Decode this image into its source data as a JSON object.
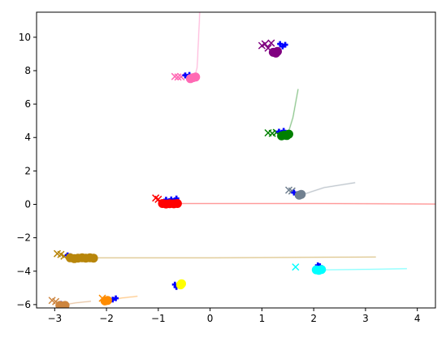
{
  "chart_data": {
    "type": "scatter",
    "title": "",
    "xlabel": "",
    "ylabel": "",
    "xlim": [
      -3.35,
      4.35
    ],
    "ylim": [
      -6.2,
      11.5
    ],
    "grid": false,
    "legend": "none",
    "x_ticks": [
      {
        "value": -3,
        "label": "−3"
      },
      {
        "value": -2,
        "label": "−2"
      },
      {
        "value": -1,
        "label": "−1"
      },
      {
        "value": 0,
        "label": "0"
      },
      {
        "value": 1,
        "label": "1"
      },
      {
        "value": 2,
        "label": "2"
      },
      {
        "value": 3,
        "label": "3"
      },
      {
        "value": 4,
        "label": "4"
      }
    ],
    "y_ticks": [
      {
        "value": -6,
        "label": "−6"
      },
      {
        "value": -4,
        "label": "−4"
      },
      {
        "value": -2,
        "label": "−2"
      },
      {
        "value": 0,
        "label": "0"
      },
      {
        "value": 2,
        "label": "2"
      },
      {
        "value": 4,
        "label": "4"
      },
      {
        "value": 6,
        "label": "6"
      },
      {
        "value": 8,
        "label": "8"
      },
      {
        "value": 10,
        "label": "10"
      }
    ],
    "groups": [
      {
        "color": "#ff69b4",
        "x_markers": [
          [
            -0.68,
            7.65
          ],
          [
            -0.62,
            7.62
          ],
          [
            -0.56,
            7.63
          ]
        ],
        "blue_markers": [
          [
            -0.48,
            7.72
          ],
          [
            -0.44,
            7.6
          ],
          [
            -0.4,
            7.75
          ]
        ],
        "circles": [
          [
            -0.38,
            7.52
          ],
          [
            -0.33,
            7.58
          ],
          [
            -0.28,
            7.62
          ]
        ],
        "trail": [
          [
            -0.2,
            11.5
          ],
          [
            -0.25,
            8.2
          ],
          [
            -0.3,
            7.6
          ]
        ]
      },
      {
        "color": "#800080",
        "x_markers": [
          [
            1.0,
            9.5
          ],
          [
            1.06,
            9.6
          ],
          [
            1.12,
            9.35
          ],
          [
            1.18,
            9.65
          ]
        ],
        "blue_markers": [
          [
            1.35,
            9.6
          ],
          [
            1.4,
            9.45
          ],
          [
            1.45,
            9.55
          ]
        ],
        "circles": [
          [
            1.22,
            9.1
          ],
          [
            1.27,
            9.05
          ],
          [
            1.3,
            9.15
          ]
        ],
        "trail": []
      },
      {
        "color": "#008000",
        "x_markers": [
          [
            1.12,
            4.28
          ],
          [
            1.2,
            4.25
          ],
          [
            1.28,
            4.3
          ]
        ],
        "blue_markers": [
          [
            1.33,
            4.35
          ],
          [
            1.38,
            4.28
          ],
          [
            1.42,
            4.4
          ]
        ],
        "circles": [
          [
            1.38,
            4.1
          ],
          [
            1.43,
            4.15
          ],
          [
            1.48,
            4.12
          ],
          [
            1.52,
            4.2
          ]
        ],
        "trail": [
          [
            1.7,
            6.9
          ],
          [
            1.6,
            5.2
          ],
          [
            1.5,
            4.2
          ]
        ]
      },
      {
        "color": "#708090",
        "x_markers": [
          [
            1.52,
            0.85
          ],
          [
            1.58,
            0.8
          ]
        ],
        "blue_markers": [
          [
            1.62,
            0.7
          ],
          [
            1.66,
            0.6
          ]
        ],
        "circles": [
          [
            1.72,
            0.55
          ],
          [
            1.76,
            0.6
          ]
        ],
        "trail": [
          [
            2.8,
            1.3
          ],
          [
            2.2,
            1.0
          ],
          [
            1.8,
            0.6
          ]
        ]
      },
      {
        "color": "#ff0000",
        "x_markers": [
          [
            -1.05,
            0.38
          ],
          [
            -1.0,
            0.3
          ]
        ],
        "blue_markers": [
          [
            -0.85,
            0.28
          ],
          [
            -0.75,
            0.3
          ],
          [
            -0.65,
            0.35
          ]
        ],
        "circles": [
          [
            -0.92,
            0.05
          ],
          [
            -0.85,
            0.02
          ],
          [
            -0.78,
            0.04
          ],
          [
            -0.7,
            0.03
          ],
          [
            -0.63,
            0.05
          ]
        ],
        "trail": [
          [
            4.35,
            0.02
          ],
          [
            2.0,
            0.05
          ],
          [
            -0.6,
            0.05
          ]
        ]
      },
      {
        "color": "#b8860b",
        "x_markers": [
          [
            -2.95,
            -2.95
          ],
          [
            -2.88,
            -3.0
          ],
          [
            -2.82,
            -3.1
          ]
        ],
        "blue_markers": [
          [
            -2.75,
            -3.05
          ],
          [
            -2.7,
            -3.1
          ]
        ],
        "circles": [
          [
            -2.7,
            -3.2
          ],
          [
            -2.62,
            -3.25
          ],
          [
            -2.55,
            -3.22
          ],
          [
            -2.47,
            -3.2
          ],
          [
            -2.4,
            -3.22
          ],
          [
            -2.32,
            -3.2
          ],
          [
            -2.25,
            -3.22
          ]
        ],
        "trail": [
          [
            3.2,
            -3.15
          ],
          [
            0.0,
            -3.2
          ],
          [
            -2.2,
            -3.2
          ]
        ]
      },
      {
        "color": "#00ffff",
        "x_markers": [
          [
            1.65,
            -3.75
          ]
        ],
        "blue_markers": [
          [
            2.08,
            -3.65
          ],
          [
            2.12,
            -3.7
          ]
        ],
        "circles": [
          [
            2.05,
            -3.92
          ],
          [
            2.1,
            -3.95
          ],
          [
            2.15,
            -3.9
          ]
        ],
        "trail": [
          [
            3.8,
            -3.85
          ],
          [
            2.8,
            -3.9
          ],
          [
            2.2,
            -3.92
          ]
        ]
      },
      {
        "color": "#ffff00",
        "x_markers": [],
        "blue_markers": [
          [
            -0.68,
            -4.8
          ],
          [
            -0.65,
            -4.95
          ]
        ],
        "circles": [
          [
            -0.55,
            -4.75
          ],
          [
            -0.57,
            -4.82
          ]
        ],
        "trail": []
      },
      {
        "color": "#ff8c00",
        "x_markers": [
          [
            -2.08,
            -5.62
          ]
        ],
        "blue_markers": [
          [
            -1.82,
            -5.62
          ],
          [
            -1.88,
            -5.7
          ]
        ],
        "circles": [
          [
            -2.03,
            -5.78
          ],
          [
            -1.98,
            -5.75
          ]
        ],
        "trail": [
          [
            -1.4,
            -5.5
          ],
          [
            -1.7,
            -5.6
          ],
          [
            -1.9,
            -5.7
          ]
        ]
      },
      {
        "color": "#cd853f",
        "x_markers": [
          [
            -3.05,
            -5.75
          ],
          [
            -2.98,
            -5.82
          ]
        ],
        "blue_markers": [
          [
            -2.88,
            -5.95
          ]
        ],
        "circles": [
          [
            -2.9,
            -6.05
          ],
          [
            -2.85,
            -6.08
          ],
          [
            -2.8,
            -6.05
          ]
        ],
        "trail": [
          [
            -2.3,
            -5.8
          ],
          [
            -2.6,
            -5.9
          ],
          [
            -2.8,
            -6.0
          ]
        ]
      }
    ],
    "colors": {
      "agent_marker": "#0000ff",
      "axis": "#000000",
      "background": "#ffffff"
    }
  }
}
